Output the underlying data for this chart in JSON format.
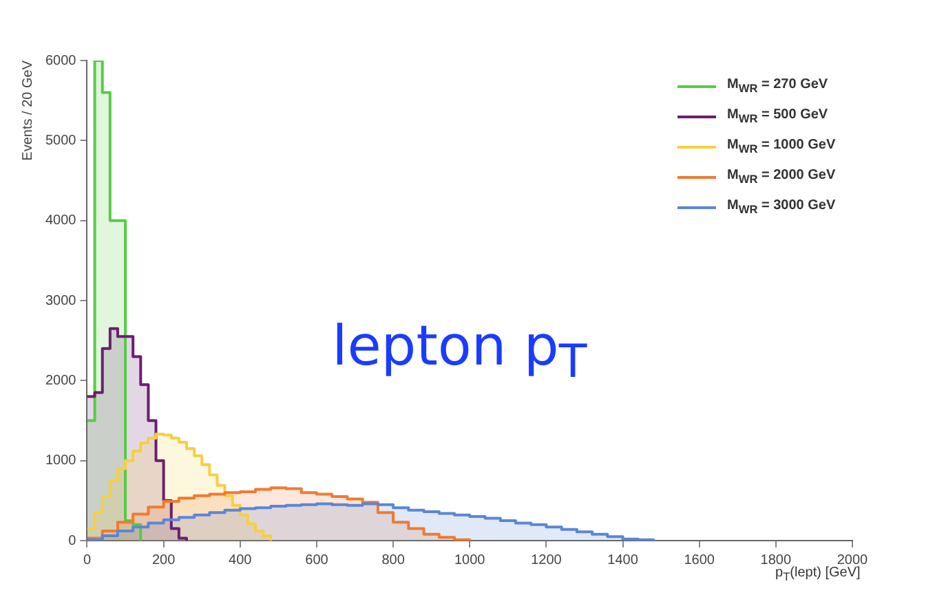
{
  "chart_data": {
    "type": "step",
    "xlabel": "p$_{T}$(lept) [GeV]",
    "ylabel": "Events / 20 GeV",
    "annotations": [
      "lepton p$_{T}$"
    ],
    "xlim": [
      0,
      2000
    ],
    "xticks": [
      0,
      200,
      400,
      600,
      800,
      1000,
      1200,
      1400,
      1600,
      1800,
      2000
    ],
    "ylim": [
      0,
      6000
    ],
    "yticks": [
      0,
      1000,
      2000,
      3000,
      4000,
      5000,
      6000
    ],
    "legend": "top right",
    "grid": false,
    "series": [
      {
        "name": "M$_{WR}$ = 270 GeV",
        "color": "#55cc44",
        "x": [
          0,
          20,
          40,
          60,
          80,
          100,
          120,
          140
        ],
        "values": [
          1500,
          6000,
          5600,
          4000,
          4000,
          250,
          200,
          0
        ]
      },
      {
        "name": "M$_{WR}$ = 500 GeV",
        "color": "#6a1f6e",
        "x": [
          0,
          20,
          40,
          60,
          80,
          100,
          120,
          140,
          160,
          180,
          200,
          220,
          240,
          260
        ],
        "values": [
          1800,
          1850,
          2400,
          2650,
          2550,
          2550,
          2300,
          1950,
          1500,
          1000,
          500,
          150,
          30,
          0
        ]
      },
      {
        "name": "M$_{WR}$ = 1000 GeV",
        "color": "#f5d040",
        "x": [
          0,
          20,
          40,
          60,
          80,
          100,
          120,
          140,
          160,
          180,
          200,
          220,
          240,
          260,
          280,
          300,
          320,
          340,
          360,
          380,
          400,
          420,
          440,
          460,
          480
        ],
        "values": [
          150,
          350,
          550,
          750,
          900,
          1000,
          1120,
          1220,
          1280,
          1330,
          1320,
          1280,
          1230,
          1150,
          1060,
          950,
          820,
          690,
          560,
          440,
          320,
          210,
          120,
          60,
          0
        ]
      },
      {
        "name": "M$_{WR}$ = 2000 GeV",
        "color": "#f07a30",
        "x": [
          0,
          40,
          80,
          120,
          160,
          200,
          240,
          280,
          320,
          360,
          400,
          440,
          480,
          520,
          560,
          600,
          640,
          680,
          720,
          760,
          800,
          840,
          880,
          920,
          960,
          1000
        ],
        "values": [
          30,
          120,
          230,
          330,
          420,
          490,
          530,
          560,
          580,
          600,
          610,
          640,
          660,
          650,
          600,
          580,
          550,
          520,
          480,
          350,
          230,
          150,
          80,
          40,
          10,
          0
        ]
      },
      {
        "name": "M$_{WR}$ = 3000 GeV",
        "color": "#5b86d6",
        "x": [
          0,
          40,
          80,
          120,
          160,
          200,
          240,
          280,
          320,
          360,
          400,
          440,
          480,
          520,
          560,
          600,
          640,
          680,
          720,
          760,
          800,
          840,
          880,
          920,
          960,
          1000,
          1040,
          1080,
          1120,
          1160,
          1200,
          1240,
          1280,
          1320,
          1360,
          1400,
          1440,
          1480
        ],
        "values": [
          10,
          60,
          120,
          170,
          220,
          260,
          290,
          320,
          350,
          380,
          400,
          410,
          430,
          440,
          450,
          460,
          450,
          440,
          460,
          450,
          410,
          380,
          360,
          340,
          320,
          300,
          280,
          250,
          220,
          200,
          170,
          140,
          110,
          80,
          50,
          20,
          10,
          0
        ]
      }
    ]
  }
}
